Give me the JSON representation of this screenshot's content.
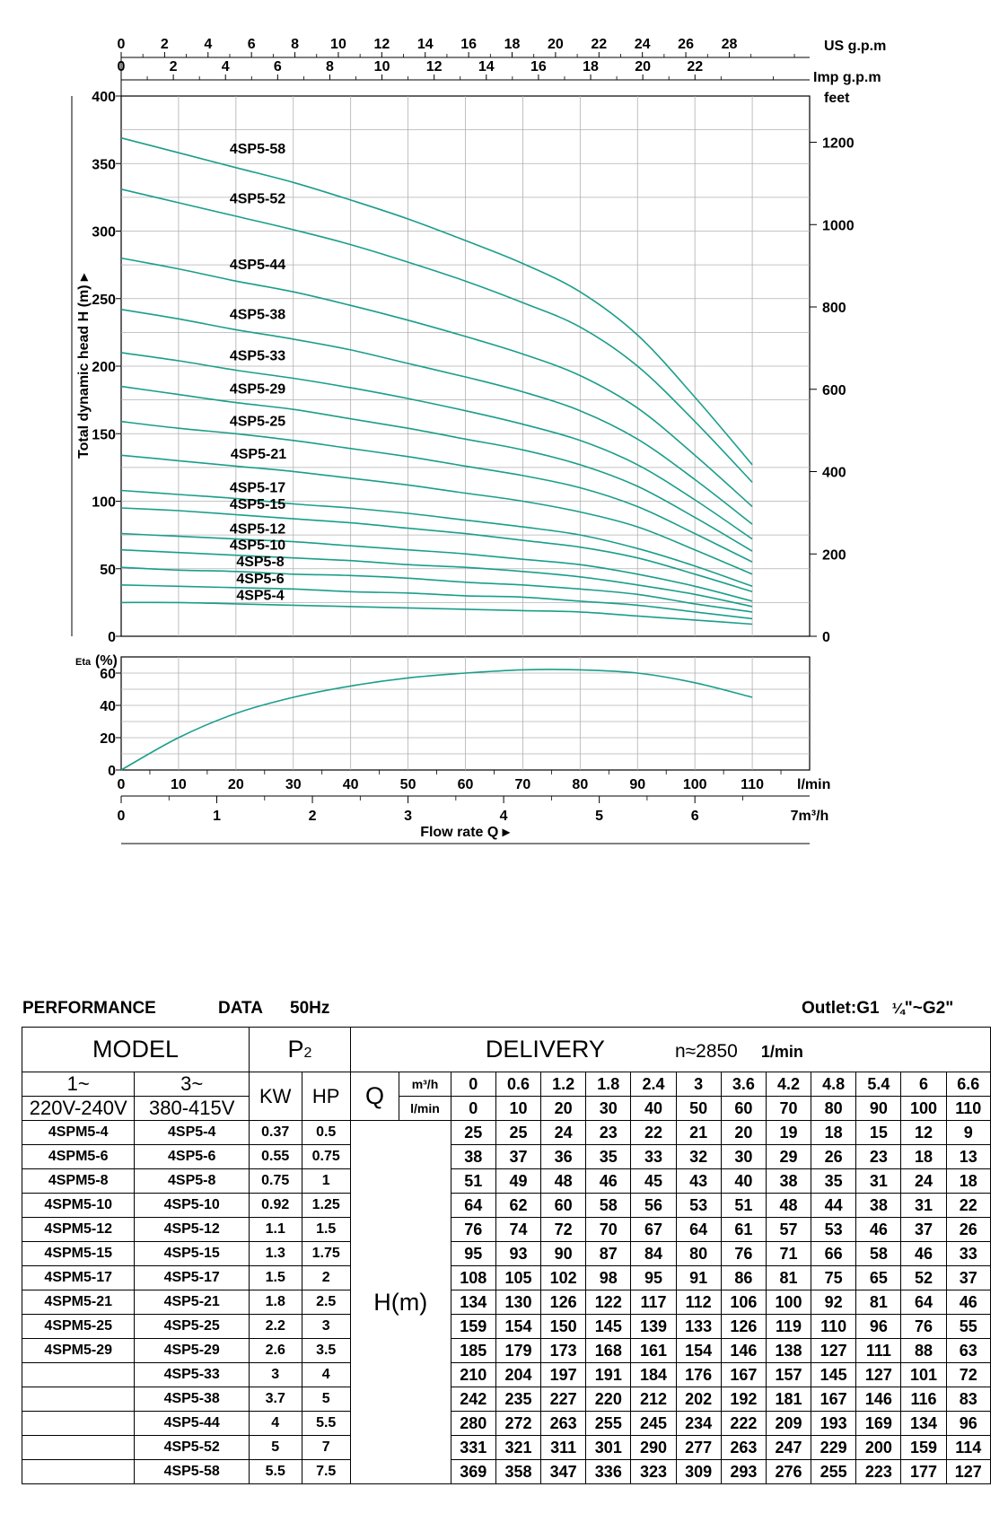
{
  "chart_data": [
    {
      "type": "line",
      "panel": "head",
      "ylabel": "Total dynamic head H  (m) ▸",
      "ylim": [
        0,
        400
      ],
      "yticks": [
        0,
        50,
        100,
        150,
        200,
        250,
        300,
        350,
        400
      ],
      "right_axis": {
        "label": "feet",
        "ticks": [
          0,
          200,
          400,
          600,
          800,
          1000,
          1200
        ]
      },
      "top_axes": [
        {
          "label": "US g.p.m",
          "ticks": [
            0,
            2,
            4,
            6,
            8,
            10,
            12,
            14,
            16,
            18,
            20,
            22,
            24,
            26,
            28
          ]
        },
        {
          "label": "Imp g.p.m",
          "ticks": [
            0,
            2,
            4,
            6,
            8,
            10,
            12,
            14,
            16,
            18,
            20,
            22
          ]
        }
      ],
      "x": [
        0,
        10,
        20,
        30,
        40,
        50,
        60,
        70,
        80,
        90,
        100,
        110
      ],
      "xlim": [
        0,
        120
      ],
      "series": [
        {
          "name": "4SP5-58",
          "values": [
            369,
            358,
            347,
            336,
            323,
            309,
            293,
            276,
            255,
            223,
            177,
            127
          ]
        },
        {
          "name": "4SP5-52",
          "values": [
            331,
            321,
            311,
            301,
            290,
            277,
            263,
            247,
            229,
            200,
            159,
            114
          ]
        },
        {
          "name": "4SP5-44",
          "values": [
            280,
            272,
            263,
            255,
            245,
            234,
            222,
            209,
            193,
            169,
            134,
            96
          ]
        },
        {
          "name": "4SP5-38",
          "values": [
            242,
            235,
            227,
            220,
            212,
            202,
            192,
            181,
            167,
            146,
            116,
            83
          ]
        },
        {
          "name": "4SP5-33",
          "values": [
            210,
            204,
            197,
            191,
            184,
            176,
            167,
            157,
            145,
            127,
            101,
            72
          ]
        },
        {
          "name": "4SP5-29",
          "values": [
            185,
            179,
            173,
            168,
            161,
            154,
            146,
            138,
            127,
            111,
            88,
            63
          ]
        },
        {
          "name": "4SP5-25",
          "values": [
            159,
            154,
            150,
            145,
            139,
            133,
            126,
            119,
            110,
            96,
            76,
            55
          ]
        },
        {
          "name": "4SP5-21",
          "values": [
            134,
            130,
            126,
            122,
            117,
            112,
            106,
            100,
            92,
            81,
            64,
            46
          ]
        },
        {
          "name": "4SP5-17",
          "values": [
            108,
            105,
            102,
            98,
            95,
            91,
            86,
            81,
            75,
            65,
            52,
            37
          ]
        },
        {
          "name": "4SP5-15",
          "values": [
            95,
            93,
            90,
            87,
            84,
            80,
            76,
            71,
            66,
            58,
            46,
            33
          ]
        },
        {
          "name": "4SP5-12",
          "values": [
            76,
            74,
            72,
            70,
            67,
            64,
            61,
            57,
            53,
            46,
            37,
            26
          ]
        },
        {
          "name": "4SP5-10",
          "values": [
            64,
            62,
            60,
            58,
            56,
            53,
            51,
            48,
            44,
            38,
            31,
            22
          ]
        },
        {
          "name": "4SP5-8",
          "values": [
            51,
            49,
            48,
            46,
            45,
            43,
            40,
            38,
            35,
            31,
            24,
            18
          ]
        },
        {
          "name": "4SP5-6",
          "values": [
            38,
            37,
            36,
            35,
            33,
            32,
            30,
            29,
            26,
            23,
            18,
            13
          ]
        },
        {
          "name": "4SP5-4",
          "values": [
            25,
            25,
            24,
            23,
            22,
            21,
            20,
            19,
            18,
            15,
            12,
            9
          ]
        }
      ],
      "line_color": "#1a9e8a",
      "grid": true
    },
    {
      "type": "line",
      "panel": "efficiency",
      "ylabel": "Eta (%)",
      "ylim": [
        0,
        70
      ],
      "yticks": [
        0,
        20,
        40,
        60
      ],
      "x": [
        0,
        10,
        20,
        30,
        40,
        50,
        60,
        70,
        80,
        90,
        100,
        110
      ],
      "xticks": [
        0,
        10,
        20,
        30,
        40,
        50,
        60,
        70,
        80,
        90,
        100,
        110
      ],
      "xlabel_unit": "l/min",
      "bottom_axis": {
        "ticks": [
          0,
          1,
          2,
          3,
          4,
          5,
          6
        ],
        "end_label": "7m³/h"
      },
      "xlabel": "Flow rate Q ▸",
      "series": [
        {
          "values": [
            0,
            20,
            35,
            45,
            52,
            57,
            60,
            62,
            62,
            60,
            54,
            45
          ]
        }
      ],
      "line_color": "#1a9e8a",
      "grid": true
    }
  ],
  "table": {
    "title": "PERFORMANCE",
    "data_label": "DATA",
    "freq": "50Hz",
    "outlet_prefix": "Outlet:G1",
    "outlet_frac": "¼",
    "outlet_suffix": "\"~G2\"",
    "model_header": "MODEL",
    "p2_header": "P2",
    "delivery_header": "DELIVERY",
    "speed": "n≈2850",
    "speed_unit": "1/min",
    "col1_phase": "1~",
    "col1_voltage": "220V-240V",
    "col2_phase": "3~",
    "col2_voltage": "380-415V",
    "kw_header": "KW",
    "hp_header": "HP",
    "q_symbol": "Q",
    "unit_m3h": "m³/h",
    "unit_lmin": "l/min",
    "h_label": "H(m)",
    "q_m3h": [
      "0",
      "0.6",
      "1.2",
      "1.8",
      "2.4",
      "3",
      "3.6",
      "4.2",
      "4.8",
      "5.4",
      "6",
      "6.6"
    ],
    "q_lmin": [
      "0",
      "10",
      "20",
      "30",
      "40",
      "50",
      "60",
      "70",
      "80",
      "90",
      "100",
      "110"
    ],
    "rows": [
      {
        "single": "4SPM5-4",
        "three": "4SP5-4",
        "kw": "0.37",
        "hp": "0.5",
        "h": [
          "25",
          "25",
          "24",
          "23",
          "22",
          "21",
          "20",
          "19",
          "18",
          "15",
          "12",
          "9"
        ]
      },
      {
        "single": "4SPM5-6",
        "three": "4SP5-6",
        "kw": "0.55",
        "hp": "0.75",
        "h": [
          "38",
          "37",
          "36",
          "35",
          "33",
          "32",
          "30",
          "29",
          "26",
          "23",
          "18",
          "13"
        ]
      },
      {
        "single": "4SPM5-8",
        "three": "4SP5-8",
        "kw": "0.75",
        "hp": "1",
        "h": [
          "51",
          "49",
          "48",
          "46",
          "45",
          "43",
          "40",
          "38",
          "35",
          "31",
          "24",
          "18"
        ]
      },
      {
        "single": "4SPM5-10",
        "three": "4SP5-10",
        "kw": "0.92",
        "hp": "1.25",
        "h": [
          "64",
          "62",
          "60",
          "58",
          "56",
          "53",
          "51",
          "48",
          "44",
          "38",
          "31",
          "22"
        ]
      },
      {
        "single": "4SPM5-12",
        "three": "4SP5-12",
        "kw": "1.1",
        "hp": "1.5",
        "h": [
          "76",
          "74",
          "72",
          "70",
          "67",
          "64",
          "61",
          "57",
          "53",
          "46",
          "37",
          "26"
        ]
      },
      {
        "single": "4SPM5-15",
        "three": "4SP5-15",
        "kw": "1.3",
        "hp": "1.75",
        "h": [
          "95",
          "93",
          "90",
          "87",
          "84",
          "80",
          "76",
          "71",
          "66",
          "58",
          "46",
          "33"
        ]
      },
      {
        "single": "4SPM5-17",
        "three": "4SP5-17",
        "kw": "1.5",
        "hp": "2",
        "h": [
          "108",
          "105",
          "102",
          "98",
          "95",
          "91",
          "86",
          "81",
          "75",
          "65",
          "52",
          "37"
        ]
      },
      {
        "single": "4SPM5-21",
        "three": "4SP5-21",
        "kw": "1.8",
        "hp": "2.5",
        "h": [
          "134",
          "130",
          "126",
          "122",
          "117",
          "112",
          "106",
          "100",
          "92",
          "81",
          "64",
          "46"
        ]
      },
      {
        "single": "4SPM5-25",
        "three": "4SP5-25",
        "kw": "2.2",
        "hp": "3",
        "h": [
          "159",
          "154",
          "150",
          "145",
          "139",
          "133",
          "126",
          "119",
          "110",
          "96",
          "76",
          "55"
        ]
      },
      {
        "single": "4SPM5-29",
        "three": "4SP5-29",
        "kw": "2.6",
        "hp": "3.5",
        "h": [
          "185",
          "179",
          "173",
          "168",
          "161",
          "154",
          "146",
          "138",
          "127",
          "111",
          "88",
          "63"
        ]
      },
      {
        "single": "",
        "three": "4SP5-33",
        "kw": "3",
        "hp": "4",
        "h": [
          "210",
          "204",
          "197",
          "191",
          "184",
          "176",
          "167",
          "157",
          "145",
          "127",
          "101",
          "72"
        ]
      },
      {
        "single": "",
        "three": "4SP5-38",
        "kw": "3.7",
        "hp": "5",
        "h": [
          "242",
          "235",
          "227",
          "220",
          "212",
          "202",
          "192",
          "181",
          "167",
          "146",
          "116",
          "83"
        ]
      },
      {
        "single": "",
        "three": "4SP5-44",
        "kw": "4",
        "hp": "5.5",
        "h": [
          "280",
          "272",
          "263",
          "255",
          "245",
          "234",
          "222",
          "209",
          "193",
          "169",
          "134",
          "96"
        ]
      },
      {
        "single": "",
        "three": "4SP5-52",
        "kw": "5",
        "hp": "7",
        "h": [
          "331",
          "321",
          "311",
          "301",
          "290",
          "277",
          "263",
          "247",
          "229",
          "200",
          "159",
          "114"
        ]
      },
      {
        "single": "",
        "three": "4SP5-58",
        "kw": "5.5",
        "hp": "7.5",
        "h": [
          "369",
          "358",
          "347",
          "336",
          "323",
          "309",
          "293",
          "276",
          "255",
          "223",
          "177",
          "127"
        ]
      }
    ]
  }
}
